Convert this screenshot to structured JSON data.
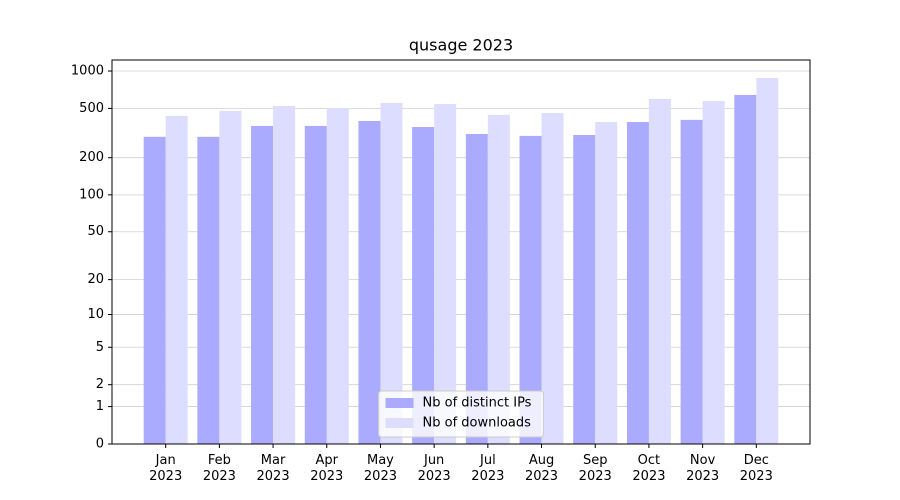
{
  "chart_data": {
    "type": "bar",
    "title": "qusage 2023",
    "categories": [
      "Jan\n2023",
      "Feb\n2023",
      "Mar\n2023",
      "Apr\n2023",
      "May\n2023",
      "Jun\n2023",
      "Jul\n2023",
      "Aug\n2023",
      "Sep\n2023",
      "Oct\n2023",
      "Nov\n2023",
      "Dec\n2023"
    ],
    "series": [
      {
        "name": "Nb of distinct IPs",
        "color": "#aaaaff",
        "values": [
          295,
          295,
          361,
          361,
          396,
          354,
          311,
          300,
          305,
          388,
          404,
          642
        ]
      },
      {
        "name": "Nb of downloads",
        "color": "#ddddff",
        "values": [
          435,
          477,
          523,
          504,
          553,
          543,
          443,
          459,
          388,
          596,
          573,
          879
        ]
      }
    ],
    "yscale": "log1p",
    "ylim": [
      0,
      1227
    ],
    "yticks": [
      0,
      1,
      2,
      5,
      10,
      20,
      50,
      100,
      200,
      500,
      1000
    ],
    "grid": true,
    "legend": "lower center"
  }
}
